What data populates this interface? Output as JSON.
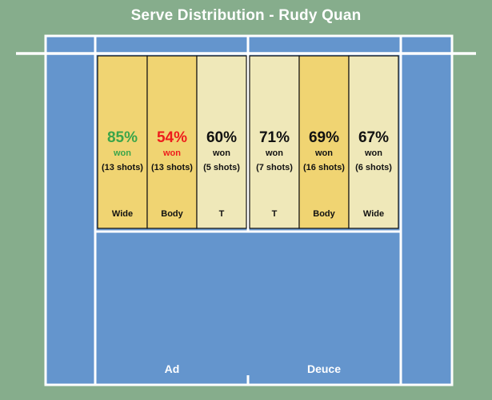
{
  "title": "Serve Distribution - Rudy Quan",
  "colors": {
    "background": "#86ad8c",
    "court": "#6495cd",
    "lines": "#ffffff",
    "zone_dark": "#f0d472",
    "zone_light": "#efe8b9",
    "high": "#3aa54a",
    "low": "#ee1c1c",
    "neutral": "#111111"
  },
  "chart_data": {
    "type": "table",
    "title": "Serve Distribution - Rudy Quan",
    "zones": [
      {
        "side": "Ad",
        "direction": "Wide",
        "win_pct": 85,
        "pct_label": "85%",
        "won_label": "won",
        "shots": 13,
        "shots_label": "(13 shots)",
        "fill": "dark",
        "highlight": "high"
      },
      {
        "side": "Ad",
        "direction": "Body",
        "win_pct": 54,
        "pct_label": "54%",
        "won_label": "won",
        "shots": 13,
        "shots_label": "(13 shots)",
        "fill": "dark",
        "highlight": "low"
      },
      {
        "side": "Ad",
        "direction": "T",
        "win_pct": 60,
        "pct_label": "60%",
        "won_label": "won",
        "shots": 5,
        "shots_label": "(5 shots)",
        "fill": "light",
        "highlight": "none"
      },
      {
        "side": "Deuce",
        "direction": "T",
        "win_pct": 71,
        "pct_label": "71%",
        "won_label": "won",
        "shots": 7,
        "shots_label": "(7 shots)",
        "fill": "light",
        "highlight": "none"
      },
      {
        "side": "Deuce",
        "direction": "Body",
        "win_pct": 69,
        "pct_label": "69%",
        "won_label": "won",
        "shots": 16,
        "shots_label": "(16 shots)",
        "fill": "dark",
        "highlight": "none"
      },
      {
        "side": "Deuce",
        "direction": "Wide",
        "win_pct": 67,
        "pct_label": "67%",
        "won_label": "won",
        "shots": 6,
        "shots_label": "(6 shots)",
        "fill": "light",
        "highlight": "none"
      }
    ],
    "court_labels": {
      "left": "Ad",
      "right": "Deuce"
    }
  }
}
